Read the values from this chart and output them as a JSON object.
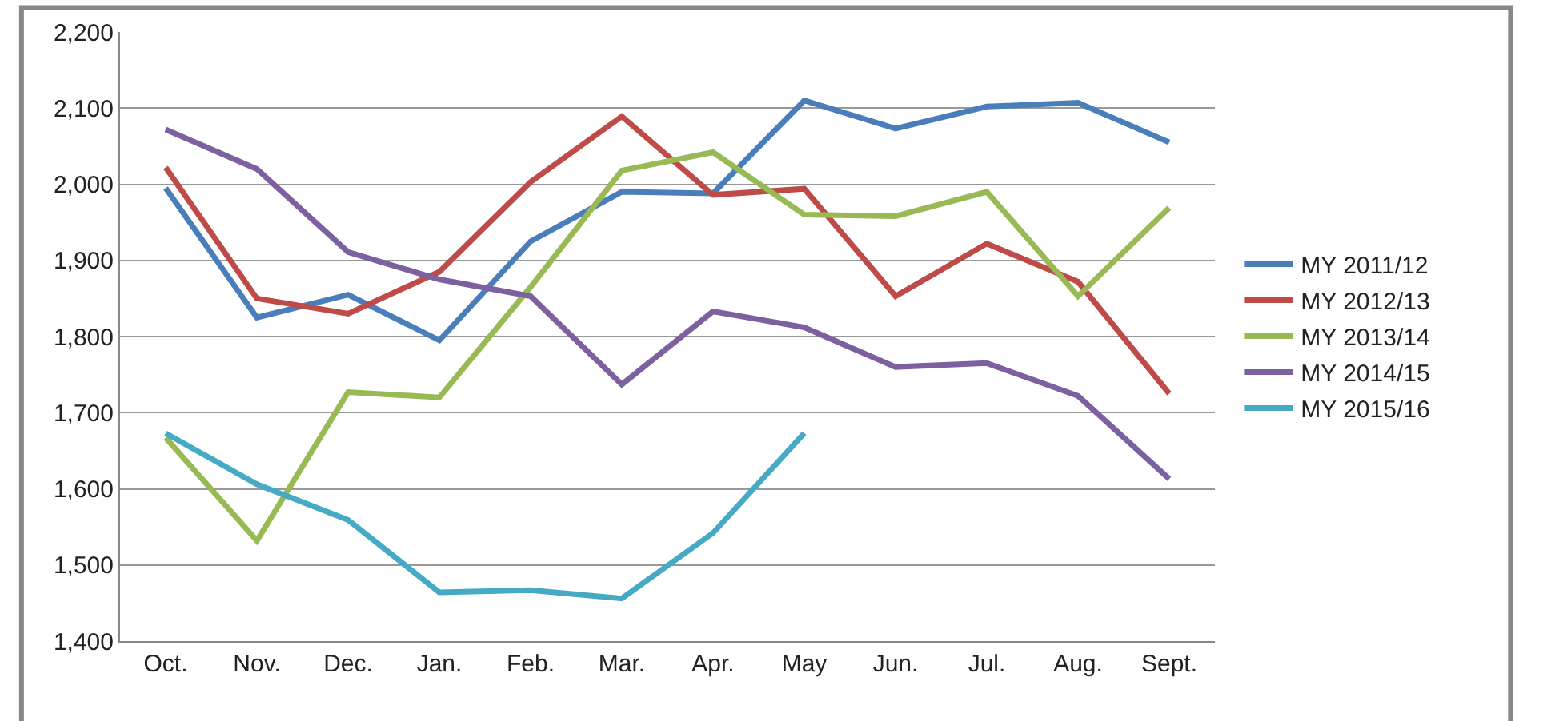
{
  "chart_data": {
    "type": "line",
    "categories": [
      "Oct.",
      "Nov.",
      "Dec.",
      "Jan.",
      "Feb.",
      "Mar.",
      "Apr.",
      "May",
      "Jun.",
      "Jul.",
      "Aug.",
      "Sept."
    ],
    "ylim": [
      1400,
      2200
    ],
    "yticks": [
      {
        "value": 1400,
        "label": "1,400"
      },
      {
        "value": 1500,
        "label": "1,500"
      },
      {
        "value": 1600,
        "label": "1,600"
      },
      {
        "value": 1700,
        "label": "1,700"
      },
      {
        "value": 1800,
        "label": "1,800"
      },
      {
        "value": 1900,
        "label": "1,900"
      },
      {
        "value": 2000,
        "label": "2,000"
      },
      {
        "value": 2100,
        "label": "2,100"
      },
      {
        "value": 2200,
        "label": "2,200"
      }
    ],
    "grid": "y",
    "legend": "right",
    "marker": "none",
    "line_style": "solid",
    "series": [
      {
        "name": "MY 2011/12",
        "color": "#4a7ebb",
        "values": [
          1995,
          1825,
          1855,
          1795,
          1925,
          1990,
          1988,
          2110,
          2073,
          2102,
          2107,
          2055
        ]
      },
      {
        "name": "MY 2012/13",
        "color": "#be4b48",
        "values": [
          2022,
          1850,
          1830,
          1885,
          2003,
          2089,
          1986,
          1994,
          1853,
          1922,
          1872,
          1725
        ]
      },
      {
        "name": "MY 2013/14",
        "color": "#98b954",
        "values": [
          1667,
          1532,
          1727,
          1720,
          1865,
          2018,
          2042,
          1960,
          1958,
          1990,
          1853,
          1969
        ]
      },
      {
        "name": "MY 2014/15",
        "color": "#7d60a0",
        "values": [
          2072,
          2020,
          1911,
          1875,
          1853,
          1737,
          1833,
          1812,
          1760,
          1765,
          1722,
          1613
        ]
      },
      {
        "name": "MY 2015/16",
        "color": "#46aac5",
        "values": [
          1673,
          1606,
          1559,
          1464,
          1467,
          1456,
          1542,
          1673,
          null,
          null,
          null,
          null
        ]
      }
    ]
  }
}
